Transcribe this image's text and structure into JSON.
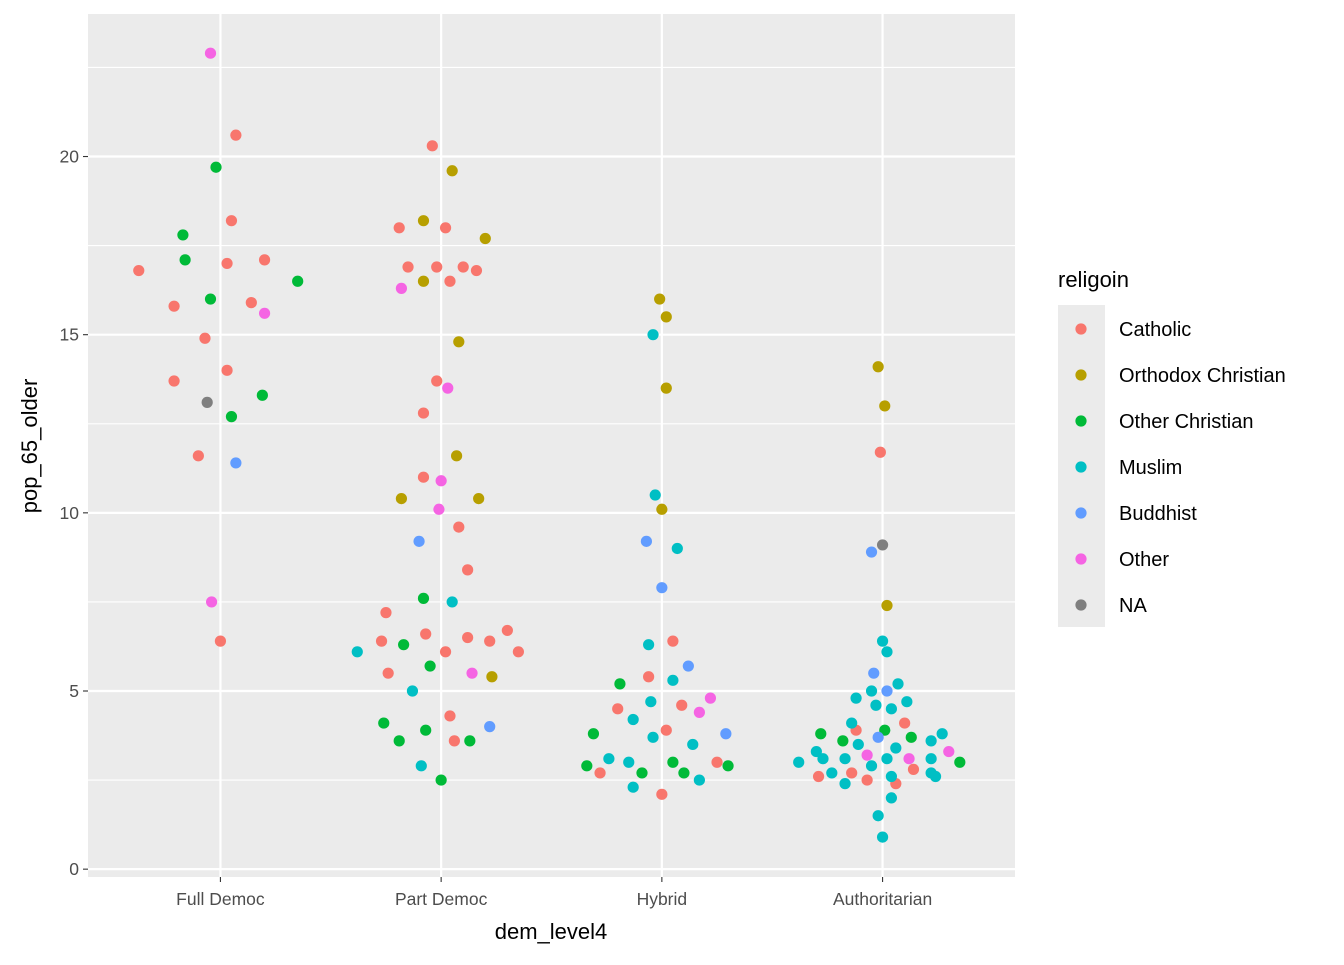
{
  "chart_data": {
    "type": "scatter",
    "title": "",
    "xlabel": "dem_level4",
    "ylabel": "pop_65_older",
    "categories": [
      "Full Democ",
      "Part Democ",
      "Hybrid",
      "Authoritarian"
    ],
    "xlim": [
      0.4,
      4.6
    ],
    "ylim": [
      -0.22,
      24.0
    ],
    "yticks": [
      0,
      5,
      10,
      15,
      20
    ],
    "grid": true,
    "legend": {
      "title": "religoin",
      "placement": "right"
    },
    "series": [
      {
        "name": "Catholic",
        "color": "#F8766D",
        "points": [
          [
            1.07,
            20.6
          ],
          [
            1.05,
            18.2
          ],
          [
            0.63,
            16.8
          ],
          [
            1.03,
            17.0
          ],
          [
            1.2,
            17.1
          ],
          [
            0.79,
            15.8
          ],
          [
            1.14,
            15.9
          ],
          [
            0.93,
            14.9
          ],
          [
            0.79,
            13.7
          ],
          [
            1.03,
            14.0
          ],
          [
            0.9,
            11.6
          ],
          [
            1.0,
            6.4
          ],
          [
            1.96,
            20.3
          ],
          [
            1.81,
            18.0
          ],
          [
            2.02,
            18.0
          ],
          [
            1.85,
            16.9
          ],
          [
            1.98,
            16.9
          ],
          [
            2.1,
            16.9
          ],
          [
            2.16,
            16.8
          ],
          [
            2.04,
            16.5
          ],
          [
            1.98,
            13.7
          ],
          [
            1.92,
            12.8
          ],
          [
            1.92,
            11.0
          ],
          [
            2.08,
            9.6
          ],
          [
            2.12,
            8.4
          ],
          [
            1.75,
            7.2
          ],
          [
            1.73,
            6.4
          ],
          [
            1.93,
            6.6
          ],
          [
            2.12,
            6.5
          ],
          [
            2.22,
            6.4
          ],
          [
            2.3,
            6.7
          ],
          [
            2.02,
            6.1
          ],
          [
            2.35,
            6.1
          ],
          [
            1.76,
            5.5
          ],
          [
            2.04,
            4.3
          ],
          [
            2.06,
            3.6
          ],
          [
            3.05,
            6.4
          ],
          [
            2.94,
            5.4
          ],
          [
            3.09,
            4.6
          ],
          [
            2.8,
            4.5
          ],
          [
            3.02,
            3.9
          ],
          [
            3.25,
            3.0
          ],
          [
            2.72,
            2.7
          ],
          [
            3.0,
            2.1
          ],
          [
            3.99,
            11.7
          ],
          [
            4.1,
            4.1
          ],
          [
            3.88,
            3.9
          ],
          [
            4.14,
            2.8
          ],
          [
            3.86,
            2.7
          ],
          [
            3.71,
            2.6
          ],
          [
            3.93,
            2.5
          ],
          [
            4.06,
            2.4
          ]
        ]
      },
      {
        "name": "Orthodox Christian",
        "color": "#B79F00",
        "points": [
          [
            2.05,
            19.6
          ],
          [
            1.92,
            18.2
          ],
          [
            2.2,
            17.7
          ],
          [
            1.92,
            16.5
          ],
          [
            2.08,
            14.8
          ],
          [
            2.07,
            11.6
          ],
          [
            1.82,
            10.4
          ],
          [
            2.17,
            10.4
          ],
          [
            2.23,
            5.4
          ],
          [
            2.99,
            16.0
          ],
          [
            3.02,
            15.5
          ],
          [
            3.02,
            13.5
          ],
          [
            3.0,
            10.1
          ],
          [
            3.98,
            14.1
          ],
          [
            4.01,
            13.0
          ],
          [
            4.02,
            7.4
          ]
        ]
      },
      {
        "name": "Other Christian",
        "color": "#00BA38",
        "points": [
          [
            0.98,
            19.7
          ],
          [
            0.83,
            17.8
          ],
          [
            0.84,
            17.1
          ],
          [
            1.35,
            16.5
          ],
          [
            0.955,
            16.0
          ],
          [
            1.19,
            13.3
          ],
          [
            1.05,
            12.7
          ],
          [
            1.92,
            7.6
          ],
          [
            1.83,
            6.3
          ],
          [
            1.95,
            5.7
          ],
          [
            1.74,
            4.1
          ],
          [
            1.93,
            3.9
          ],
          [
            1.81,
            3.6
          ],
          [
            2.13,
            3.6
          ],
          [
            2.0,
            2.5
          ],
          [
            2.81,
            5.2
          ],
          [
            2.69,
            3.8
          ],
          [
            2.66,
            2.9
          ],
          [
            3.05,
            3.0
          ],
          [
            3.3,
            2.9
          ],
          [
            2.91,
            2.7
          ],
          [
            3.1,
            2.7
          ],
          [
            4.01,
            3.9
          ],
          [
            3.72,
            3.8
          ],
          [
            3.82,
            3.6
          ],
          [
            4.13,
            3.7
          ],
          [
            4.35,
            3.0
          ]
        ]
      },
      {
        "name": "Muslim",
        "color": "#00BFC4",
        "points": [
          [
            2.05,
            7.5
          ],
          [
            1.62,
            6.1
          ],
          [
            1.87,
            5.0
          ],
          [
            1.91,
            2.9
          ],
          [
            2.96,
            15.0
          ],
          [
            2.97,
            10.5
          ],
          [
            3.07,
            9.0
          ],
          [
            2.94,
            6.3
          ],
          [
            3.05,
            5.3
          ],
          [
            2.95,
            4.7
          ],
          [
            2.87,
            4.2
          ],
          [
            2.96,
            3.7
          ],
          [
            3.14,
            3.5
          ],
          [
            2.76,
            3.1
          ],
          [
            2.85,
            3.0
          ],
          [
            3.17,
            2.5
          ],
          [
            2.87,
            2.3
          ],
          [
            4.0,
            6.4
          ],
          [
            4.02,
            6.1
          ],
          [
            4.07,
            5.2
          ],
          [
            3.95,
            5.0
          ],
          [
            3.88,
            4.8
          ],
          [
            4.11,
            4.7
          ],
          [
            3.97,
            4.6
          ],
          [
            4.04,
            4.5
          ],
          [
            3.86,
            4.1
          ],
          [
            4.27,
            3.8
          ],
          [
            4.22,
            3.6
          ],
          [
            3.89,
            3.5
          ],
          [
            4.06,
            3.4
          ],
          [
            3.7,
            3.3
          ],
          [
            3.73,
            3.1
          ],
          [
            3.83,
            3.1
          ],
          [
            4.02,
            3.1
          ],
          [
            4.22,
            3.1
          ],
          [
            3.62,
            3.0
          ],
          [
            3.95,
            2.9
          ],
          [
            3.77,
            2.7
          ],
          [
            4.22,
            2.7
          ],
          [
            4.24,
            2.6
          ],
          [
            4.04,
            2.6
          ],
          [
            3.83,
            2.4
          ],
          [
            4.04,
            2.0
          ],
          [
            3.98,
            1.5
          ],
          [
            4.0,
            0.9
          ]
        ]
      },
      {
        "name": "Buddhist",
        "color": "#619CFF",
        "points": [
          [
            1.07,
            11.4
          ],
          [
            1.9,
            9.2
          ],
          [
            2.22,
            4.0
          ],
          [
            2.93,
            9.2
          ],
          [
            3.0,
            7.9
          ],
          [
            3.12,
            5.7
          ],
          [
            3.29,
            3.8
          ],
          [
            3.95,
            8.9
          ],
          [
            3.96,
            5.5
          ],
          [
            4.02,
            5.0
          ],
          [
            3.98,
            3.7
          ]
        ]
      },
      {
        "name": "Other",
        "color": "#F564E3",
        "points": [
          [
            0.955,
            22.9
          ],
          [
            1.2,
            15.6
          ],
          [
            0.96,
            7.5
          ],
          [
            1.82,
            16.3
          ],
          [
            2.03,
            13.5
          ],
          [
            2.0,
            10.9
          ],
          [
            1.99,
            10.1
          ],
          [
            2.14,
            5.5
          ],
          [
            3.22,
            4.8
          ],
          [
            3.17,
            4.4
          ],
          [
            4.3,
            3.3
          ],
          [
            3.93,
            3.2
          ],
          [
            4.12,
            3.1
          ]
        ]
      },
      {
        "name": "NA",
        "color": "#7F7F7F",
        "points": [
          [
            0.94,
            13.1
          ],
          [
            4.0,
            9.1
          ]
        ]
      }
    ]
  }
}
